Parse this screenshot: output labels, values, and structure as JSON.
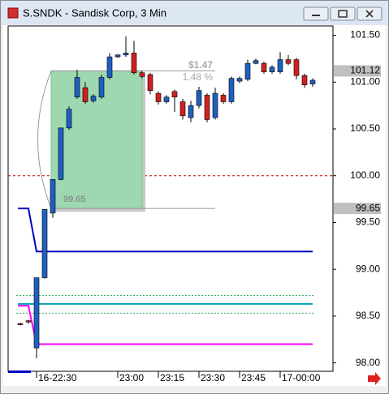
{
  "chart_data": {
    "type": "candlestick",
    "title": "S.SNDK - Sandisk Corp, 3 Min",
    "categories": [
      null,
      null,
      "16-22:30",
      null,
      null,
      null,
      null,
      null,
      null,
      null,
      null,
      null,
      "23:00",
      null,
      null,
      null,
      null,
      "23:15",
      null,
      null,
      null,
      null,
      "23:30",
      null,
      null,
      null,
      null,
      "23:45",
      null,
      null,
      null,
      null,
      "17-00:00",
      null,
      null,
      null,
      null
    ],
    "open": [
      98.42,
      98.45,
      98.16,
      98.91,
      99.6,
      99.96,
      100.51,
      100.84,
      100.94,
      100.8,
      100.84,
      101.05,
      101.27,
      101.29,
      101.31,
      101.1,
      101.08,
      100.88,
      100.79,
      100.9,
      100.79,
      100.62,
      100.75,
      100.86,
      100.62,
      100.86,
      100.79,
      101.01,
      101.03,
      101.2,
      101.2,
      101.11,
      101.11,
      101.24,
      101.24,
      101.07,
      100.98
    ],
    "high": [
      98.43,
      98.46,
      98.91,
      99.64,
      99.96,
      100.51,
      100.74,
      101.13,
      101.0,
      100.87,
      101.08,
      101.31,
      101.3,
      101.49,
      101.44,
      101.12,
      101.1,
      100.9,
      100.86,
      100.92,
      100.82,
      100.8,
      100.95,
      100.88,
      100.94,
      100.88,
      101.06,
      101.06,
      101.24,
      101.25,
      101.22,
      101.18,
      101.32,
      101.29,
      101.26,
      101.09,
      101.04
    ],
    "low": [
      98.4,
      98.42,
      98.05,
      98.9,
      99.55,
      99.95,
      100.49,
      100.82,
      100.77,
      100.78,
      100.82,
      101.03,
      101.26,
      101.27,
      101.08,
      101.04,
      100.87,
      100.76,
      100.77,
      100.68,
      100.6,
      100.57,
      100.72,
      100.57,
      100.6,
      100.77,
      100.77,
      100.99,
      101.01,
      101.19,
      101.09,
      101.09,
      101.09,
      101.18,
      101.03,
      100.94,
      100.95
    ],
    "close": [
      98.41,
      98.44,
      98.91,
      99.64,
      99.96,
      100.51,
      100.71,
      101.05,
      100.79,
      100.85,
      101.05,
      101.27,
      101.29,
      101.31,
      101.1,
      101.06,
      100.91,
      100.79,
      100.84,
      100.84,
      100.64,
      100.75,
      100.91,
      100.6,
      100.88,
      100.79,
      101.04,
      101.04,
      101.2,
      101.23,
      101.11,
      101.16,
      101.24,
      101.2,
      101.07,
      100.97,
      101.02
    ],
    "up_color": "#1f5fbf",
    "down_color": "#d02020",
    "ylim": [
      97.91,
      101.6
    ],
    "yticks": [
      {
        "value": 98,
        "label": "98.00"
      },
      {
        "value": 98.5,
        "label": "98.50"
      },
      {
        "value": 99,
        "label": "99.00"
      },
      {
        "value": 99.5,
        "label": "99.50"
      },
      {
        "value": 100,
        "label": "100.00"
      },
      {
        "value": 100.5,
        "label": "100.50"
      },
      {
        "value": 101,
        "label": "101.00"
      },
      {
        "value": 101.5,
        "label": "101.50"
      }
    ],
    "indicators": [
      {
        "color": "#0000c0",
        "values": [
          99.65,
          99.65,
          99.19,
          99.19,
          99.19,
          99.19,
          99.19,
          99.19,
          99.19,
          99.19,
          99.19,
          99.19,
          99.19,
          99.19,
          99.19,
          99.19,
          99.19,
          99.19,
          99.19,
          99.19,
          99.19,
          99.19,
          99.19,
          99.19,
          99.19,
          99.19,
          99.19,
          99.19,
          99.19,
          99.19,
          99.19,
          99.19,
          99.19,
          99.19,
          99.19,
          99.19,
          99.19
        ]
      },
      {
        "color": "#00a0b0",
        "values": [
          98.63,
          98.63,
          98.63,
          98.63,
          98.63,
          98.63,
          98.63,
          98.63,
          98.63,
          98.63,
          98.63,
          98.63,
          98.63,
          98.63,
          98.63,
          98.63,
          98.63,
          98.63,
          98.63,
          98.63,
          98.63,
          98.63,
          98.63,
          98.63,
          98.63,
          98.63,
          98.63,
          98.63,
          98.63,
          98.63,
          98.63,
          98.63,
          98.63,
          98.63,
          98.63,
          98.63,
          98.63
        ]
      },
      {
        "color": "#ff00ff",
        "values": [
          98.61,
          98.61,
          98.2,
          98.2,
          98.2,
          98.2,
          98.2,
          98.2,
          98.2,
          98.2,
          98.2,
          98.2,
          98.2,
          98.2,
          98.2,
          98.2,
          98.2,
          98.2,
          98.2,
          98.2,
          98.2,
          98.2,
          98.2,
          98.2,
          98.2,
          98.2,
          98.2,
          98.2,
          98.2,
          98.2,
          98.2,
          98.2,
          98.2,
          98.2,
          98.2,
          98.2,
          98.2
        ]
      }
    ],
    "levels": [
      {
        "value": 98.72,
        "color": "#30b060"
      },
      {
        "value": 98.53,
        "color": "#30b060"
      }
    ],
    "reference_line": {
      "value": 100,
      "color": "#c00000"
    },
    "measure": {
      "low": 99.65,
      "high": 101.12,
      "change": "$1.47",
      "percent": "1.48 %"
    },
    "price_markers": [
      101.12,
      99.65
    ]
  }
}
